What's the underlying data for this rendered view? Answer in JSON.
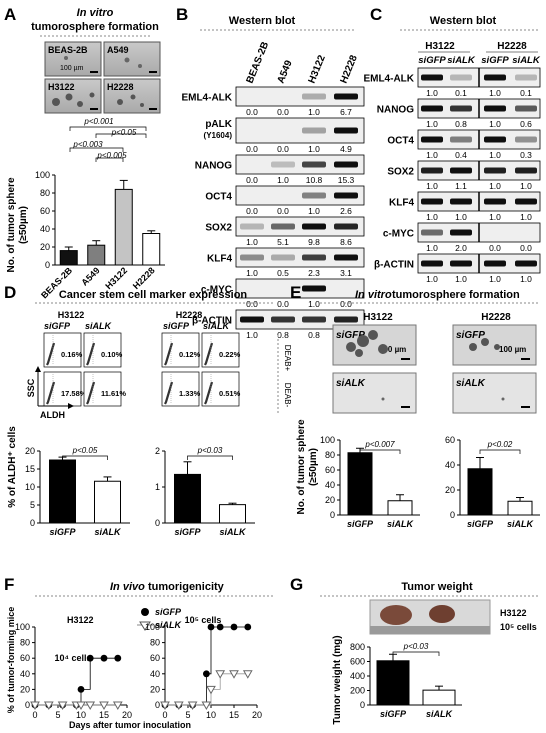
{
  "panelA": {
    "letter": "A",
    "title1": "In vitro",
    "title2": "tumorosphere formation",
    "images": [
      "BEAS-2B",
      "A549",
      "H3122",
      "H2228"
    ],
    "scale": "100 µm",
    "ylabel1": "No. of tumor sphere",
    "ylabel2": "(≥50µm)",
    "pvals": [
      "p<0.001",
      "p<0.05",
      "p<0.003",
      "p<0.005"
    ],
    "chart_data": {
      "type": "bar",
      "categories": [
        "BEAS-2B",
        "A549",
        "H3122",
        "H2228"
      ],
      "values": [
        16,
        22,
        84,
        35
      ],
      "errors": [
        4,
        5,
        10,
        3
      ],
      "colors": [
        "#111111",
        "#7f7f7f",
        "#c4c4c4",
        "#ffffff"
      ],
      "ylim": [
        0,
        100
      ],
      "yticks": [
        0,
        20,
        40,
        60,
        80,
        100
      ]
    }
  },
  "panelB": {
    "letter": "B",
    "title": "Western blot",
    "lanes": [
      "BEAS-2B",
      "A549",
      "H3122",
      "H2228"
    ],
    "blots": [
      {
        "label": "EML4-ALK",
        "vals": [
          "0.0",
          "0.0",
          "1.0",
          "6.7"
        ]
      },
      {
        "label": "pALK",
        "sub": "(Y1604)",
        "vals": [
          "0.0",
          "0.0",
          "1.0",
          "4.9"
        ]
      },
      {
        "label": "NANOG",
        "vals": [
          "0.0",
          "1.0",
          "10.8",
          "15.3"
        ]
      },
      {
        "label": "OCT4",
        "vals": [
          "0.0",
          "0.0",
          "1.0",
          "2.6"
        ]
      },
      {
        "label": "SOX2",
        "vals": [
          "1.0",
          "5.1",
          "9.8",
          "8.6"
        ]
      },
      {
        "label": "KLF4",
        "vals": [
          "1.0",
          "0.5",
          "2.3",
          "3.1"
        ]
      },
      {
        "label": "c-MYC",
        "vals": [
          "0.0",
          "0.0",
          "1.0",
          "0.0"
        ]
      },
      {
        "label": "β-ACTIN",
        "vals": [
          "1.0",
          "0.8",
          "0.8",
          "0.9"
        ]
      }
    ]
  },
  "panelC": {
    "letter": "C",
    "title": "Western blot",
    "groups": [
      "H3122",
      "H2228"
    ],
    "lanes": [
      "siGFP",
      "siALK",
      "siGFP",
      "siALK"
    ],
    "blots": [
      {
        "label": "EML4-ALK",
        "vals": [
          "1.0",
          "0.1",
          "1.0",
          "0.1"
        ]
      },
      {
        "label": "NANOG",
        "vals": [
          "1.0",
          "0.8",
          "1.0",
          "0.6"
        ]
      },
      {
        "label": "OCT4",
        "vals": [
          "1.0",
          "0.4",
          "1.0",
          "0.3"
        ]
      },
      {
        "label": "SOX2",
        "vals": [
          "1.0",
          "1.1",
          "1.0",
          "1.0"
        ]
      },
      {
        "label": "KLF4",
        "vals": [
          "1.0",
          "1.0",
          "1.0",
          "1.0"
        ]
      },
      {
        "label": "c-MYC",
        "vals": [
          "1.0",
          "2.0",
          "0.0",
          "0.0"
        ]
      },
      {
        "label": "β-ACTIN",
        "vals": [
          "1.0",
          "1.0",
          "1.0",
          "1.0"
        ]
      }
    ]
  },
  "panelD": {
    "letter": "D",
    "title": "Cancer stem cell marker expression",
    "groups": [
      "H3122",
      "H2228"
    ],
    "lanes": [
      "siGFP",
      "siALK"
    ],
    "deab_plus": "DEAB+",
    "deab_minus": "DEAB-",
    "ssc": "SSC",
    "aldh": "ALDH",
    "pct_plus": [
      "0.16%",
      "0.10%",
      "0.12%",
      "0.22%"
    ],
    "pct_minus": [
      "17.58%",
      "11.61%",
      "1.33%",
      "0.51%"
    ],
    "ylabel": "% of ALDH⁺ cells",
    "pvals": [
      "p<0.05",
      "p<0.03"
    ],
    "chart_data": [
      {
        "type": "bar",
        "group": "H3122",
        "categories": [
          "siGFP",
          "siALK"
        ],
        "values": [
          17.5,
          11.6
        ],
        "errors": [
          0.8,
          1.2
        ],
        "ylim": [
          0,
          20
        ],
        "yticks": [
          0,
          5,
          10,
          15,
          20
        ]
      },
      {
        "type": "bar",
        "group": "H2228",
        "categories": [
          "siGFP",
          "siALK"
        ],
        "values": [
          1.35,
          0.51
        ],
        "errors": [
          0.35,
          0.04
        ],
        "ylim": [
          0,
          2
        ],
        "yticks": [
          0,
          1,
          2
        ]
      }
    ]
  },
  "panelE": {
    "letter": "E",
    "title1": "In vitro",
    "title2": " tumorosphere formation",
    "groups": [
      "H3122",
      "H2228"
    ],
    "img_labels": [
      "siGFP",
      "siALK"
    ],
    "scale": "100 µm",
    "ylabel1": "No. of tumor  sphere",
    "ylabel2": "(≥50µm)",
    "pvals": [
      "p<0.007",
      "p<0.02"
    ],
    "chart_data": [
      {
        "type": "bar",
        "group": "H3122",
        "categories": [
          "siGFP",
          "siALK"
        ],
        "values": [
          83,
          19
        ],
        "errors": [
          6,
          8
        ],
        "ylim": [
          0,
          100
        ],
        "yticks": [
          0,
          20,
          40,
          60,
          80,
          100
        ]
      },
      {
        "type": "bar",
        "group": "H2228",
        "categories": [
          "siGFP",
          "siALK"
        ],
        "values": [
          37,
          11
        ],
        "errors": [
          9,
          3
        ],
        "ylim": [
          0,
          60
        ],
        "yticks": [
          0,
          20,
          40,
          60
        ]
      }
    ]
  },
  "panelF": {
    "letter": "F",
    "title1": "In vivo",
    "title2": " tumorigenicity",
    "cell": "H3122",
    "legend": [
      "siGFP",
      "siALK"
    ],
    "sub": [
      "10⁴ cells",
      "10⁵ cells"
    ],
    "ylabel": "% of tumor-forming mice",
    "xlabel": "Days after tumor inoculation",
    "chart_data": [
      {
        "type": "scatter",
        "title": "10⁴ cells",
        "series": [
          {
            "name": "siGFP",
            "x": [
              0,
              3,
              6,
              9,
              10,
              12,
              15,
              18
            ],
            "y": [
              0,
              0,
              0,
              0,
              20,
              60,
              60,
              60
            ]
          },
          {
            "name": "siALK",
            "x": [
              0,
              3,
              6,
              9,
              10,
              12,
              15,
              18
            ],
            "y": [
              0,
              0,
              0,
              0,
              0,
              0,
              0,
              0
            ]
          }
        ],
        "xticks": [
          0,
          5,
          10,
          15,
          20
        ],
        "yticks": [
          0,
          20,
          40,
          60,
          80,
          100
        ],
        "xlim": [
          0,
          20
        ],
        "ylim": [
          0,
          100
        ]
      },
      {
        "type": "scatter",
        "title": "10⁵ cells",
        "series": [
          {
            "name": "siGFP",
            "x": [
              0,
              3,
              6,
              9,
              10,
              12,
              15,
              18
            ],
            "y": [
              0,
              0,
              0,
              40,
              100,
              100,
              100,
              100
            ]
          },
          {
            "name": "siALK",
            "x": [
              0,
              3,
              6,
              9,
              10,
              12,
              15,
              18
            ],
            "y": [
              0,
              0,
              0,
              0,
              20,
              40,
              40,
              40
            ]
          }
        ],
        "xticks": [
          0,
          5,
          10,
          15,
          20
        ],
        "yticks": [
          0,
          20,
          40,
          60,
          80,
          100
        ],
        "xlim": [
          0,
          20
        ],
        "ylim": [
          0,
          100
        ]
      }
    ]
  },
  "panelG": {
    "letter": "G",
    "title": "Tumor weight",
    "cell": "H3122",
    "cells": "10⁵ cells",
    "ylabel": "Tumor weight (mg)",
    "pval": "p<0.03",
    "chart_data": {
      "type": "bar",
      "categories": [
        "siGFP",
        "siALK"
      ],
      "values": [
        610,
        205
      ],
      "errors": [
        90,
        55
      ],
      "ylim": [
        0,
        800
      ],
      "yticks": [
        0,
        200,
        400,
        600,
        800
      ]
    }
  }
}
